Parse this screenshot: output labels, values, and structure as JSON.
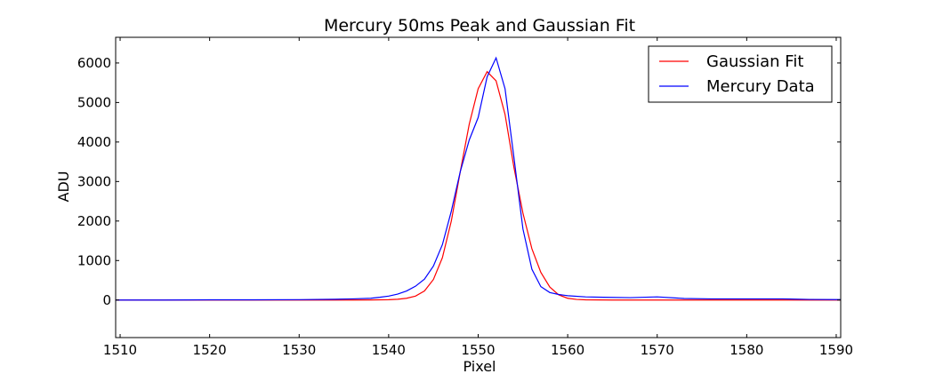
{
  "chart_data": {
    "type": "line",
    "title": "Mercury 50ms Peak and Gaussian Fit",
    "xlabel": "Pixel",
    "ylabel": "ADU",
    "xlim": [
      1509.5,
      1590.5
    ],
    "ylim": [
      -950,
      6650
    ],
    "xticks": [
      1510,
      1520,
      1530,
      1540,
      1550,
      1560,
      1570,
      1580,
      1590
    ],
    "yticks": [
      0,
      1000,
      2000,
      3000,
      4000,
      5000,
      6000
    ],
    "legend_position": "top-right",
    "grid": false,
    "series": [
      {
        "name": "Gaussian Fit",
        "color": "#ff0000",
        "x": [
          1509,
          1530,
          1536,
          1538,
          1540,
          1541,
          1542,
          1543,
          1544,
          1545,
          1546,
          1547,
          1548,
          1549,
          1550,
          1551,
          1552,
          1553,
          1554,
          1555,
          1556,
          1557,
          1558,
          1559,
          1560,
          1561,
          1562,
          1565,
          1591
        ],
        "y": [
          0,
          0,
          0,
          2,
          8,
          20,
          45,
          100,
          230,
          520,
          1070,
          2000,
          3250,
          4450,
          5350,
          5780,
          5550,
          4700,
          3350,
          2200,
          1300,
          700,
          330,
          130,
          45,
          15,
          5,
          0,
          0
        ]
      },
      {
        "name": "Mercury Data",
        "color": "#0000ff",
        "x": [
          1509,
          1515,
          1520,
          1525,
          1530,
          1534,
          1536,
          1538,
          1539,
          1540,
          1541,
          1542,
          1543,
          1544,
          1545,
          1546,
          1547,
          1548,
          1549,
          1550,
          1551,
          1552,
          1553,
          1554,
          1555,
          1556,
          1557,
          1558,
          1559,
          1560,
          1562,
          1564,
          1567,
          1570,
          1573,
          1576,
          1580,
          1584,
          1587,
          1591
        ],
        "y": [
          0,
          0,
          5,
          5,
          10,
          20,
          30,
          45,
          70,
          100,
          150,
          230,
          350,
          530,
          860,
          1400,
          2250,
          3250,
          4050,
          4620,
          5650,
          6130,
          5350,
          3600,
          1800,
          780,
          340,
          190,
          140,
          110,
          80,
          70,
          60,
          80,
          40,
          30,
          30,
          30,
          15,
          10
        ]
      }
    ]
  }
}
